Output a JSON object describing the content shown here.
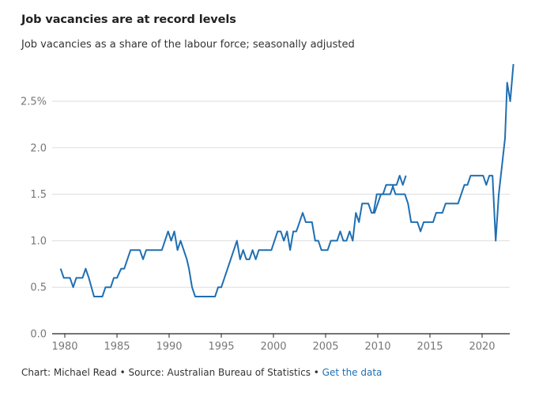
{
  "header": {
    "title": "Job vacancies are at record levels",
    "subtitle": "Job vacancies as a share of the labour force; seasonally adjusted"
  },
  "footer": {
    "credit": "Chart: Michael Read • Source: Australian Bureau of Statistics • ",
    "link_label": "Get the data"
  },
  "colors": {
    "line": "#1f6fb2",
    "grid": "#dddddd",
    "axis": "#222222",
    "tick_text": "#777777",
    "link": "#1f6fb2"
  },
  "chart_data": {
    "type": "line",
    "title": "Job vacancies are at record levels",
    "subtitle": "Job vacancies as a share of the labour force; seasonally adjusted",
    "xlabel": "",
    "ylabel": "",
    "xlim": [
      1979.3,
      2022.6
    ],
    "ylim": [
      0,
      3.0
    ],
    "grid": true,
    "y_ticks": [
      0.0,
      0.5,
      1.0,
      1.5,
      2.0,
      2.5
    ],
    "y_tick_labels": [
      "0.0",
      "0.5",
      "1.0",
      "1.5",
      "2.0",
      "2.5%"
    ],
    "x_ticks": [
      1980,
      1985,
      1990,
      1995,
      2000,
      2005,
      2010,
      2015,
      2020
    ],
    "x_tick_labels": [
      "1980",
      "1985",
      "1990",
      "1995",
      "2000",
      "2005",
      "2010",
      "2015",
      "2020"
    ],
    "series": [
      {
        "points": [
          [
            1979.6,
            0.7
          ],
          [
            1979.9,
            0.6
          ],
          [
            1980.5,
            0.6
          ],
          [
            1980.8,
            0.5
          ],
          [
            1981.1,
            0.6
          ],
          [
            1981.7,
            0.6
          ],
          [
            1982.0,
            0.7
          ],
          [
            1982.3,
            0.6
          ],
          [
            1982.8,
            0.4
          ],
          [
            1983.6,
            0.4
          ],
          [
            1983.9,
            0.5
          ],
          [
            1984.4,
            0.5
          ],
          [
            1984.7,
            0.6
          ],
          [
            1985.0,
            0.6
          ],
          [
            1985.4,
            0.7
          ],
          [
            1985.7,
            0.7
          ],
          [
            1986.0,
            0.8
          ],
          [
            1986.3,
            0.9
          ],
          [
            1987.2,
            0.9
          ],
          [
            1987.5,
            0.8
          ],
          [
            1987.8,
            0.9
          ],
          [
            1989.3,
            0.9
          ],
          [
            1989.9,
            1.1
          ],
          [
            1990.2,
            1.0
          ],
          [
            1990.5,
            1.1
          ],
          [
            1990.8,
            0.9
          ],
          [
            1991.1,
            1.0
          ],
          [
            1991.7,
            0.8
          ],
          [
            1991.9,
            0.7
          ],
          [
            1992.2,
            0.5
          ],
          [
            1992.5,
            0.4
          ],
          [
            1994.4,
            0.4
          ],
          [
            1994.7,
            0.5
          ],
          [
            1995.0,
            0.5
          ],
          [
            1995.3,
            0.6
          ],
          [
            1996.5,
            1.0
          ],
          [
            1996.8,
            0.8
          ],
          [
            1997.1,
            0.9
          ],
          [
            1997.4,
            0.8
          ],
          [
            1997.7,
            0.8
          ],
          [
            1998.0,
            0.9
          ],
          [
            1998.3,
            0.8
          ],
          [
            1998.6,
            0.9
          ],
          [
            1999.8,
            0.9
          ],
          [
            2000.1,
            1.0
          ],
          [
            2000.4,
            1.1
          ],
          [
            2000.7,
            1.1
          ],
          [
            2001.0,
            1.0
          ],
          [
            2001.3,
            1.1
          ],
          [
            2001.6,
            0.9
          ],
          [
            2001.9,
            1.1
          ],
          [
            2002.2,
            1.1
          ],
          [
            2002.5,
            1.2
          ],
          [
            2002.8,
            1.3
          ],
          [
            2003.1,
            1.2
          ],
          [
            2003.7,
            1.2
          ],
          [
            2004.0,
            1.0
          ],
          [
            2004.3,
            1.0
          ],
          [
            2004.6,
            0.9
          ],
          [
            2005.2,
            0.9
          ],
          [
            2005.5,
            1.0
          ],
          [
            2006.1,
            1.0
          ],
          [
            2006.4,
            1.1
          ],
          [
            2006.7,
            1.0
          ],
          [
            2007.0,
            1.0
          ],
          [
            2007.3,
            1.1
          ],
          [
            2007.6,
            1.0
          ],
          [
            2007.9,
            1.3
          ],
          [
            2008.2,
            1.2
          ],
          [
            2008.5,
            1.4
          ],
          [
            2009.1,
            1.4
          ],
          [
            2009.4,
            1.3
          ],
          [
            2009.7,
            1.3
          ],
          [
            2010.3,
            1.5
          ],
          [
            2011.2,
            1.5
          ],
          [
            2011.5,
            1.6
          ],
          [
            2011.8,
            1.6
          ],
          [
            2012.1,
            1.7
          ],
          [
            2012.4,
            1.6
          ],
          [
            2012.7,
            1.7
          ]
        ]
      },
      {
        "points": [
          [
            2009.6,
            1.3
          ],
          [
            2009.9,
            1.5
          ],
          [
            2010.5,
            1.5
          ],
          [
            2010.8,
            1.6
          ],
          [
            2011.4,
            1.6
          ],
          [
            2011.7,
            1.5
          ],
          [
            2012.6,
            1.5
          ],
          [
            2012.9,
            1.4
          ],
          [
            2013.2,
            1.2
          ],
          [
            2013.8,
            1.2
          ],
          [
            2014.1,
            1.1
          ],
          [
            2014.4,
            1.2
          ],
          [
            2015.3,
            1.2
          ],
          [
            2015.6,
            1.3
          ],
          [
            2016.2,
            1.3
          ],
          [
            2016.5,
            1.4
          ],
          [
            2017.7,
            1.4
          ],
          [
            2018.0,
            1.5
          ],
          [
            2018.3,
            1.6
          ],
          [
            2018.6,
            1.6
          ],
          [
            2018.9,
            1.7
          ],
          [
            2020.1,
            1.7
          ],
          [
            2020.4,
            1.6
          ],
          [
            2020.7,
            1.7
          ],
          [
            2021.0,
            1.7
          ],
          [
            2021.3,
            1.0
          ],
          [
            2021.6,
            1.5
          ],
          [
            2022.2,
            2.1
          ],
          [
            2022.4,
            2.7
          ],
          [
            2022.7,
            2.5
          ],
          [
            2023.0,
            2.9
          ]
        ]
      }
    ]
  }
}
